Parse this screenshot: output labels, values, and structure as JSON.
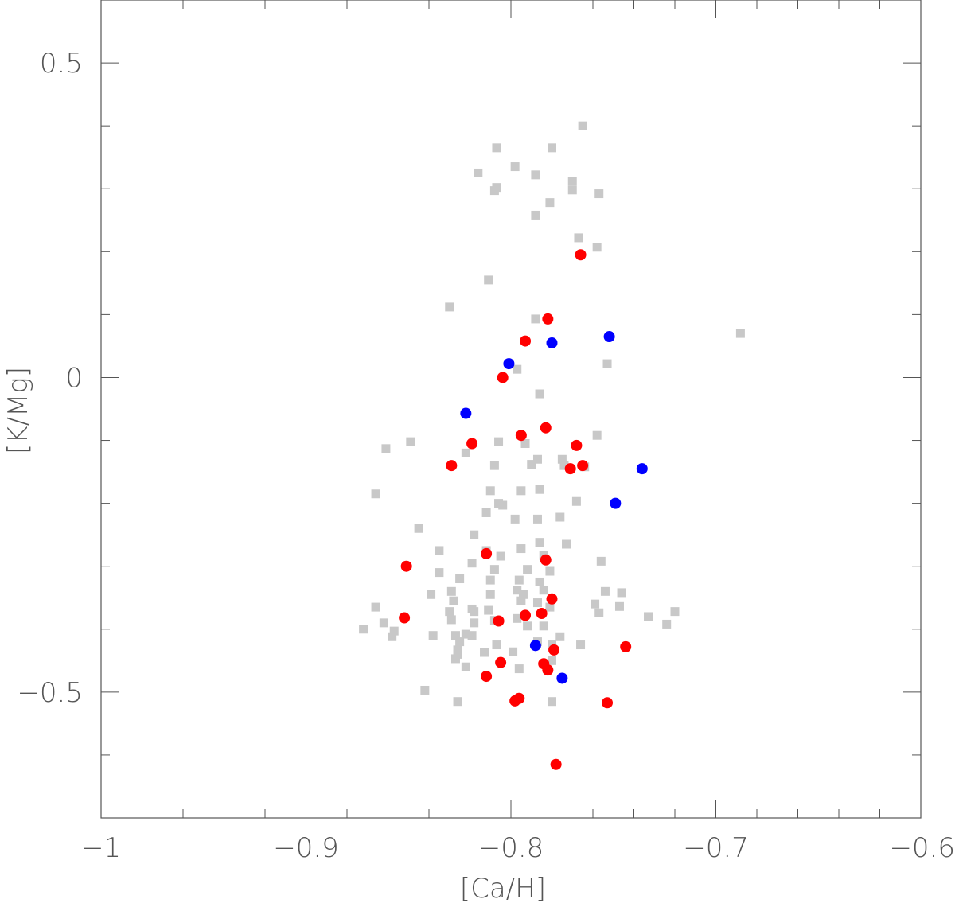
{
  "chart_data": {
    "type": "scatter",
    "title": "",
    "xlabel": "[Ca/H]",
    "ylabel": "[K/Mg]",
    "xlim": [
      -1.0,
      -0.6
    ],
    "ylim": [
      -0.7,
      0.6
    ],
    "x_ticks": [
      -1.0,
      -0.9,
      -0.8,
      -0.7,
      -0.6
    ],
    "x_tick_labels": [
      "−1",
      "−0.9",
      "−0.8",
      "−0.7",
      "−0.6"
    ],
    "y_ticks": [
      -0.5,
      0.0,
      0.5
    ],
    "y_tick_labels": [
      "−0.5",
      "0",
      "0.5"
    ],
    "grid": false,
    "legend": "none",
    "series": [
      {
        "marker": "square",
        "color": "#c8c8c8",
        "points": [
          [
            -0.765,
            0.4
          ],
          [
            -0.78,
            0.365
          ],
          [
            -0.807,
            0.365
          ],
          [
            -0.798,
            0.335
          ],
          [
            -0.816,
            0.325
          ],
          [
            -0.788,
            0.322
          ],
          [
            -0.77,
            0.312
          ],
          [
            -0.807,
            0.302
          ],
          [
            -0.77,
            0.298
          ],
          [
            -0.757,
            0.292
          ],
          [
            -0.808,
            0.297
          ],
          [
            -0.781,
            0.278
          ],
          [
            -0.788,
            0.258
          ],
          [
            -0.767,
            0.222
          ],
          [
            -0.758,
            0.207
          ],
          [
            -0.811,
            0.155
          ],
          [
            -0.83,
            0.112
          ],
          [
            -0.788,
            0.093
          ],
          [
            -0.688,
            0.07
          ],
          [
            -0.797,
            0.013
          ],
          [
            -0.753,
            0.022
          ],
          [
            -0.786,
            -0.026
          ],
          [
            -0.758,
            -0.092
          ],
          [
            -0.849,
            -0.102
          ],
          [
            -0.806,
            -0.102
          ],
          [
            -0.793,
            -0.105
          ],
          [
            -0.861,
            -0.113
          ],
          [
            -0.822,
            -0.12
          ],
          [
            -0.808,
            -0.14
          ],
          [
            -0.787,
            -0.13
          ],
          [
            -0.775,
            -0.13
          ],
          [
            -0.79,
            -0.138
          ],
          [
            -0.774,
            -0.14
          ],
          [
            -0.764,
            -0.142
          ],
          [
            -0.866,
            -0.185
          ],
          [
            -0.81,
            -0.18
          ],
          [
            -0.795,
            -0.18
          ],
          [
            -0.786,
            -0.178
          ],
          [
            -0.768,
            -0.197
          ],
          [
            -0.806,
            -0.2
          ],
          [
            -0.804,
            -0.203
          ],
          [
            -0.812,
            -0.215
          ],
          [
            -0.798,
            -0.225
          ],
          [
            -0.787,
            -0.225
          ],
          [
            -0.776,
            -0.222
          ],
          [
            -0.845,
            -0.24
          ],
          [
            -0.818,
            -0.25
          ],
          [
            -0.786,
            -0.262
          ],
          [
            -0.773,
            -0.265
          ],
          [
            -0.835,
            -0.275
          ],
          [
            -0.812,
            -0.275
          ],
          [
            -0.805,
            -0.284
          ],
          [
            -0.795,
            -0.272
          ],
          [
            -0.784,
            -0.283
          ],
          [
            -0.756,
            -0.292
          ],
          [
            -0.819,
            -0.295
          ],
          [
            -0.808,
            -0.305
          ],
          [
            -0.835,
            -0.31
          ],
          [
            -0.792,
            -0.305
          ],
          [
            -0.781,
            -0.308
          ],
          [
            -0.825,
            -0.32
          ],
          [
            -0.81,
            -0.322
          ],
          [
            -0.796,
            -0.322
          ],
          [
            -0.786,
            -0.325
          ],
          [
            -0.797,
            -0.338
          ],
          [
            -0.829,
            -0.34
          ],
          [
            -0.839,
            -0.345
          ],
          [
            -0.81,
            -0.345
          ],
          [
            -0.784,
            -0.338
          ],
          [
            -0.794,
            -0.345
          ],
          [
            -0.754,
            -0.34
          ],
          [
            -0.746,
            -0.342
          ],
          [
            -0.759,
            -0.36
          ],
          [
            -0.747,
            -0.364
          ],
          [
            -0.866,
            -0.365
          ],
          [
            -0.828,
            -0.355
          ],
          [
            -0.819,
            -0.368
          ],
          [
            -0.811,
            -0.37
          ],
          [
            -0.795,
            -0.355
          ],
          [
            -0.787,
            -0.358
          ],
          [
            -0.781,
            -0.365
          ],
          [
            -0.818,
            -0.372
          ],
          [
            -0.83,
            -0.372
          ],
          [
            -0.757,
            -0.374
          ],
          [
            -0.72,
            -0.372
          ],
          [
            -0.733,
            -0.38
          ],
          [
            -0.862,
            -0.39
          ],
          [
            -0.829,
            -0.385
          ],
          [
            -0.818,
            -0.39
          ],
          [
            -0.808,
            -0.386
          ],
          [
            -0.797,
            -0.383
          ],
          [
            -0.784,
            -0.395
          ],
          [
            -0.792,
            -0.395
          ],
          [
            -0.724,
            -0.392
          ],
          [
            -0.872,
            -0.4
          ],
          [
            -0.857,
            -0.403
          ],
          [
            -0.838,
            -0.41
          ],
          [
            -0.822,
            -0.408
          ],
          [
            -0.819,
            -0.41
          ],
          [
            -0.827,
            -0.41
          ],
          [
            -0.858,
            -0.412
          ],
          [
            -0.776,
            -0.412
          ],
          [
            -0.825,
            -0.42
          ],
          [
            -0.787,
            -0.42
          ],
          [
            -0.78,
            -0.425
          ],
          [
            -0.807,
            -0.425
          ],
          [
            -0.766,
            -0.425
          ],
          [
            -0.826,
            -0.433
          ],
          [
            -0.813,
            -0.437
          ],
          [
            -0.826,
            -0.44
          ],
          [
            -0.799,
            -0.436
          ],
          [
            -0.827,
            -0.447
          ],
          [
            -0.78,
            -0.45
          ],
          [
            -0.796,
            -0.463
          ],
          [
            -0.842,
            -0.497
          ],
          [
            -0.826,
            -0.515
          ],
          [
            -0.78,
            -0.515
          ],
          [
            -0.822,
            -0.46
          ]
        ]
      },
      {
        "marker": "circle",
        "color": "#ff0000",
        "points": [
          [
            -0.766,
            0.195
          ],
          [
            -0.782,
            0.093
          ],
          [
            -0.793,
            0.058
          ],
          [
            -0.804,
            0.0
          ],
          [
            -0.783,
            -0.08
          ],
          [
            -0.795,
            -0.092
          ],
          [
            -0.819,
            -0.105
          ],
          [
            -0.768,
            -0.108
          ],
          [
            -0.829,
            -0.14
          ],
          [
            -0.765,
            -0.14
          ],
          [
            -0.771,
            -0.145
          ],
          [
            -0.812,
            -0.28
          ],
          [
            -0.783,
            -0.29
          ],
          [
            -0.851,
            -0.3
          ],
          [
            -0.78,
            -0.352
          ],
          [
            -0.785,
            -0.375
          ],
          [
            -0.793,
            -0.378
          ],
          [
            -0.852,
            -0.382
          ],
          [
            -0.806,
            -0.387
          ],
          [
            -0.744,
            -0.428
          ],
          [
            -0.779,
            -0.433
          ],
          [
            -0.805,
            -0.453
          ],
          [
            -0.784,
            -0.455
          ],
          [
            -0.782,
            -0.465
          ],
          [
            -0.812,
            -0.475
          ],
          [
            -0.796,
            -0.51
          ],
          [
            -0.798,
            -0.514
          ],
          [
            -0.753,
            -0.517
          ],
          [
            -0.778,
            -0.615
          ]
        ]
      },
      {
        "marker": "circle",
        "color": "#0000ff",
        "points": [
          [
            -0.752,
            0.065
          ],
          [
            -0.78,
            0.055
          ],
          [
            -0.801,
            0.022
          ],
          [
            -0.822,
            -0.057
          ],
          [
            -0.736,
            -0.145
          ],
          [
            -0.749,
            -0.2
          ],
          [
            -0.788,
            -0.426
          ],
          [
            -0.775,
            -0.478
          ]
        ]
      }
    ]
  }
}
